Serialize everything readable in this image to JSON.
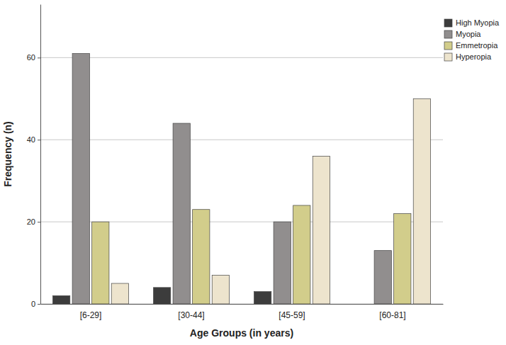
{
  "chart_data": {
    "type": "bar",
    "x_label": "Age Groups (in years)",
    "y_label": "Frequency (n)",
    "categories": [
      "[6-29]",
      "[30-44]",
      "[45-59]",
      "[60-81]"
    ],
    "series": [
      {
        "name": "High Myopia",
        "color": "#3c3c3c",
        "values": [
          2,
          4,
          3,
          0
        ]
      },
      {
        "name": "Myopia",
        "color": "#918e8e",
        "values": [
          61,
          44,
          20,
          13
        ]
      },
      {
        "name": "Emmetropia",
        "color": "#d2cd8b",
        "values": [
          20,
          23,
          24,
          22
        ]
      },
      {
        "name": "Hyperopia",
        "color": "#ede4cd",
        "values": [
          5,
          7,
          36,
          50
        ]
      }
    ],
    "ylim": [
      0,
      73
    ],
    "yticks": [
      0,
      20,
      40,
      60
    ],
    "grid": true,
    "legend": "right"
  }
}
